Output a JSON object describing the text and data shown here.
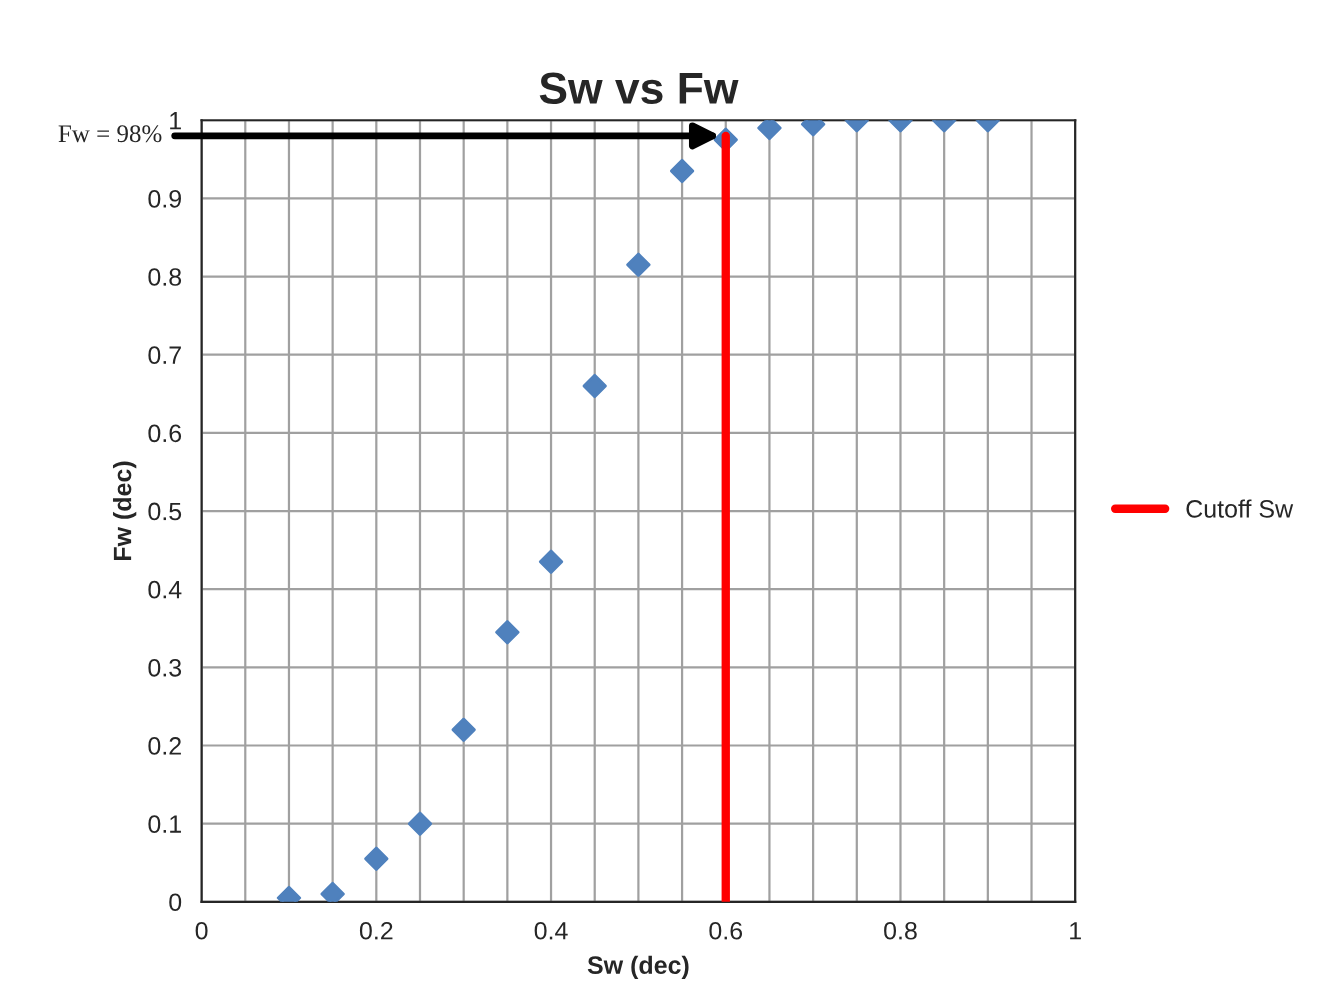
{
  "chart_data": {
    "type": "scatter",
    "title": "Sw vs Fw",
    "xlabel": "Sw (dec)",
    "ylabel": "Fw (dec)",
    "series": [
      {
        "color": "#4f81bd",
        "marker": "diamond",
        "x": [
          0.1,
          0.15,
          0.2,
          0.25,
          0.3,
          0.35,
          0.4,
          0.45,
          0.5,
          0.55,
          0.6,
          0.65,
          0.7,
          0.75,
          0.8,
          0.85,
          0.9
        ],
        "values": [
          0.005,
          0.01,
          0.055,
          0.1,
          0.22,
          0.345,
          0.435,
          0.66,
          0.815,
          0.935,
          0.975,
          0.99,
          0.995,
          1.0,
          1.0,
          1.0,
          1.0
        ]
      },
      {
        "type": "line",
        "name": "Cutoff Sw",
        "color": "#ff0000",
        "marker": "none",
        "x": [
          0.6,
          0.6
        ],
        "values": [
          0,
          0.98
        ]
      }
    ],
    "annotations": [
      {
        "text": "Fw = 98%",
        "x": 0.6,
        "y": 0.98
      }
    ],
    "xlim": [
      0,
      1
    ],
    "ylim": [
      0,
      1
    ],
    "xticks": [
      0,
      {
        "value": 0.05,
        "label": null
      },
      {
        "value": 0.1,
        "label": null
      },
      {
        "value": 0.15,
        "label": null
      },
      0.2,
      {
        "value": 0.25,
        "label": null
      },
      {
        "value": 0.3,
        "label": null
      },
      {
        "value": 0.35,
        "label": null
      },
      0.4,
      {
        "value": 0.45,
        "label": null
      },
      {
        "value": 0.5,
        "label": null
      },
      {
        "value": 0.55,
        "label": null
      },
      0.6,
      {
        "value": 0.65,
        "label": null
      },
      {
        "value": 0.7,
        "label": null
      },
      {
        "value": 0.75,
        "label": null
      },
      0.8,
      {
        "value": 0.85,
        "label": null
      },
      {
        "value": 0.9,
        "label": null
      },
      {
        "value": 0.95,
        "label": null
      },
      1
    ],
    "yticks": [
      0,
      0.1,
      0.2,
      0.3,
      0.4,
      0.5,
      0.6,
      0.7,
      0.8,
      0.9,
      1
    ],
    "grid": true,
    "legend": "right"
  }
}
